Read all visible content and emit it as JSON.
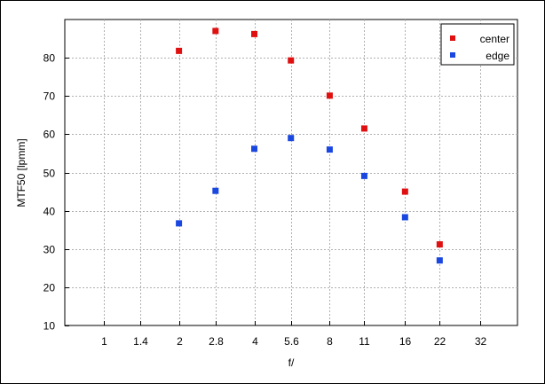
{
  "chart_data": {
    "type": "scatter",
    "xlabel": "f/",
    "ylabel": "MTF50 [lpmm]",
    "x_scale": "log2",
    "x_ticks": [
      "1",
      "1.4",
      "2",
      "2.8",
      "4",
      "5.6",
      "8",
      "11",
      "16",
      "22",
      "32"
    ],
    "xlim": [
      0.7,
      45
    ],
    "ylim": [
      10,
      90
    ],
    "y_ticks": [
      10,
      20,
      30,
      40,
      50,
      60,
      70,
      80
    ],
    "grid": true,
    "legend_position": "top-right",
    "series": [
      {
        "name": "center",
        "color": "#e01010",
        "x": [
          "2",
          "2.8",
          "4",
          "5.6",
          "8",
          "11",
          "16",
          "22"
        ],
        "values": [
          81.8,
          87.0,
          86.2,
          79.3,
          70.1,
          61.5,
          45.0,
          31.2
        ]
      },
      {
        "name": "edge",
        "color": "#1a47e0",
        "x": [
          "2",
          "2.8",
          "4",
          "5.6",
          "8",
          "11",
          "16",
          "22"
        ],
        "values": [
          36.7,
          45.2,
          56.2,
          59.0,
          56.0,
          49.1,
          38.3,
          27.0
        ]
      }
    ]
  }
}
